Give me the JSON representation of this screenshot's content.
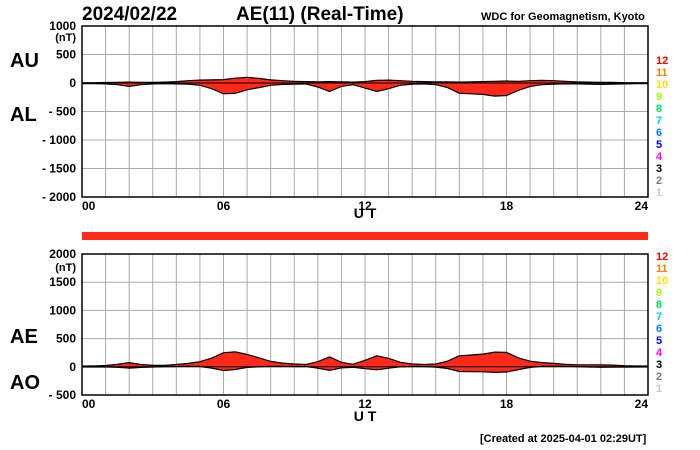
{
  "header": {
    "date": "2024/02/22",
    "title": "AE(11) (Real-Time)",
    "credit": "WDC for Geomagnetism, Kyoto"
  },
  "footer": {
    "created": "[Created at 2025-04-01 02:29UT]"
  },
  "hour_labels": [
    "1",
    "2",
    "3",
    "4",
    "5",
    "6",
    "7",
    "8",
    "9",
    "10",
    "11",
    "12"
  ],
  "hour_colors": [
    "#c8c8c8",
    "#7a7a7a",
    "#000000",
    "#ff00ff",
    "#0000ff",
    "#0080ff",
    "#00c8ff",
    "#00e060",
    "#a0ff00",
    "#ffe000",
    "#ff8000",
    "#ff0000"
  ],
  "fill_color": "#ff2a1a",
  "chart_data": [
    {
      "type": "area",
      "panel": "AU/AL",
      "labels": {
        "upper": "AU",
        "lower": "AL"
      },
      "unit": "(nT)",
      "xlabel": "U T",
      "x_ticks": [
        "00",
        "06",
        "12",
        "18",
        "24"
      ],
      "x_range": [
        0,
        24
      ],
      "y_range": [
        -2000,
        1000
      ],
      "y_ticks": [
        "1000",
        "500",
        "0",
        "- 500",
        "- 1000",
        "- 1500",
        "- 2000"
      ],
      "grid": true,
      "x_hours": [
        0,
        0.5,
        1,
        1.5,
        2,
        2.5,
        3,
        3.5,
        4,
        4.5,
        5,
        5.5,
        6,
        6.5,
        7,
        7.5,
        8,
        8.5,
        9,
        9.5,
        10,
        10.5,
        11,
        11.5,
        12,
        12.5,
        13,
        13.5,
        14,
        14.5,
        15,
        15.5,
        16,
        16.5,
        17,
        17.5,
        18,
        18.5,
        19,
        19.5,
        20,
        20.5,
        21,
        21.5,
        22,
        22.5,
        23,
        23.5,
        24
      ],
      "series": [
        {
          "name": "AU",
          "values": [
            5,
            5,
            8,
            12,
            15,
            10,
            10,
            15,
            25,
            40,
            50,
            55,
            60,
            85,
            100,
            80,
            55,
            40,
            30,
            25,
            20,
            25,
            20,
            15,
            25,
            45,
            50,
            40,
            30,
            25,
            20,
            20,
            15,
            20,
            25,
            30,
            35,
            30,
            40,
            45,
            40,
            30,
            20,
            15,
            10,
            10,
            5,
            5,
            5
          ]
        },
        {
          "name": "AL",
          "values": [
            -10,
            -10,
            -15,
            -30,
            -60,
            -30,
            -15,
            -10,
            -15,
            -20,
            -40,
            -100,
            -190,
            -180,
            -120,
            -80,
            -40,
            -25,
            -20,
            -15,
            -70,
            -150,
            -60,
            -30,
            -90,
            -150,
            -100,
            -40,
            -20,
            -15,
            -30,
            -80,
            -180,
            -190,
            -200,
            -230,
            -220,
            -130,
            -60,
            -30,
            -20,
            -15,
            -15,
            -20,
            -25,
            -20,
            -15,
            -10,
            -10
          ]
        }
      ]
    },
    {
      "type": "area",
      "panel": "AE/AO",
      "labels": {
        "upper": "AE",
        "lower": "AO"
      },
      "unit": "(nT)",
      "xlabel": "U T",
      "x_ticks": [
        "00",
        "06",
        "12",
        "18",
        "24"
      ],
      "x_range": [
        0,
        24
      ],
      "y_range": [
        -500,
        2000
      ],
      "y_ticks": [
        "2000",
        "1500",
        "1000",
        "500",
        "0",
        "- 500"
      ],
      "grid": true,
      "x_hours": [
        0,
        0.5,
        1,
        1.5,
        2,
        2.5,
        3,
        3.5,
        4,
        4.5,
        5,
        5.5,
        6,
        6.5,
        7,
        7.5,
        8,
        8.5,
        9,
        9.5,
        10,
        10.5,
        11,
        11.5,
        12,
        12.5,
        13,
        13.5,
        14,
        14.5,
        15,
        15.5,
        16,
        16.5,
        17,
        17.5,
        18,
        18.5,
        19,
        19.5,
        20,
        20.5,
        21,
        21.5,
        22,
        22.5,
        23,
        23.5,
        24
      ],
      "series": [
        {
          "name": "AE",
          "values": [
            15,
            15,
            23,
            42,
            75,
            40,
            25,
            25,
            40,
            60,
            90,
            155,
            250,
            265,
            220,
            160,
            95,
            65,
            50,
            40,
            90,
            175,
            80,
            45,
            115,
            195,
            150,
            80,
            50,
            40,
            50,
            100,
            195,
            210,
            225,
            260,
            255,
            160,
            100,
            75,
            60,
            45,
            35,
            35,
            35,
            30,
            20,
            15,
            15
          ]
        },
        {
          "name": "AO",
          "values": [
            -3,
            -3,
            -4,
            -9,
            -23,
            -10,
            -3,
            3,
            5,
            10,
            5,
            -23,
            -65,
            -48,
            -10,
            0,
            8,
            8,
            5,
            5,
            -25,
            -63,
            -20,
            -8,
            -33,
            -53,
            -25,
            0,
            5,
            5,
            -5,
            -30,
            -83,
            -85,
            -88,
            -100,
            -93,
            -50,
            -10,
            8,
            10,
            8,
            3,
            -3,
            -8,
            -5,
            -5,
            -3,
            -3
          ]
        }
      ]
    }
  ]
}
